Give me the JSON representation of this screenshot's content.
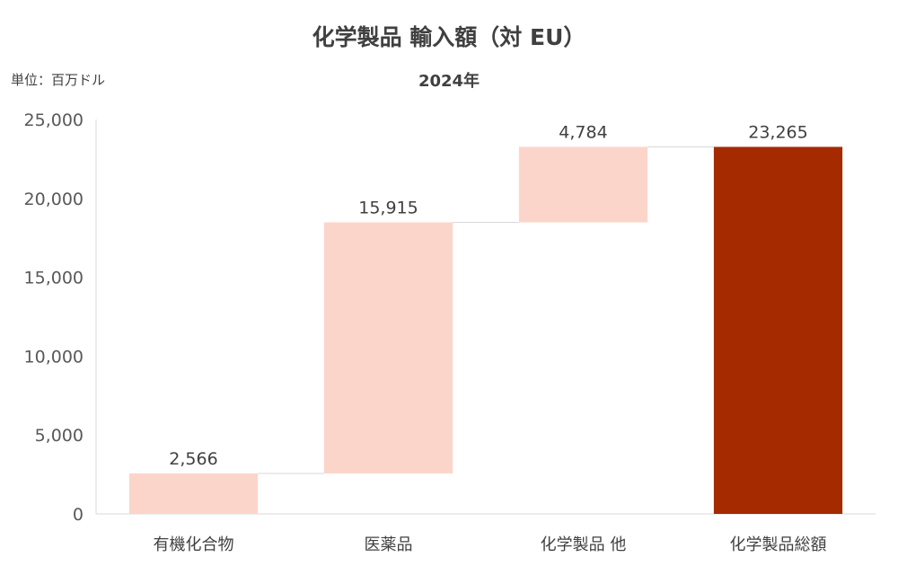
{
  "title": "化学製品 輸入額（対 EU）",
  "subtitle": "2024年",
  "unit_label": "単位：百万ドル",
  "colors": {
    "increase": "#FCD5CA",
    "total": "#A52A00",
    "connector": "#D9D9D9",
    "axis": "#D9D9D9"
  },
  "chart_data": {
    "type": "bar",
    "subtype": "waterfall",
    "title": "化学製品 輸入額（対 EU）",
    "subtitle": "2024年",
    "xlabel": "",
    "ylabel": "",
    "ylim": [
      0,
      25000
    ],
    "yticks": [
      0,
      5000,
      10000,
      15000,
      20000,
      25000
    ],
    "ytick_labels": [
      "0",
      "5,000",
      "10,000",
      "15,000",
      "20,000",
      "25,000"
    ],
    "grid": false,
    "categories": [
      "有機化合物",
      "医薬品",
      "化学製品 他",
      "化学製品総額"
    ],
    "values": [
      2566,
      15915,
      4784,
      23265
    ],
    "data_labels": [
      "2,566",
      "15,915",
      "4,784",
      "23,265"
    ],
    "is_total": [
      false,
      false,
      false,
      true
    ]
  }
}
